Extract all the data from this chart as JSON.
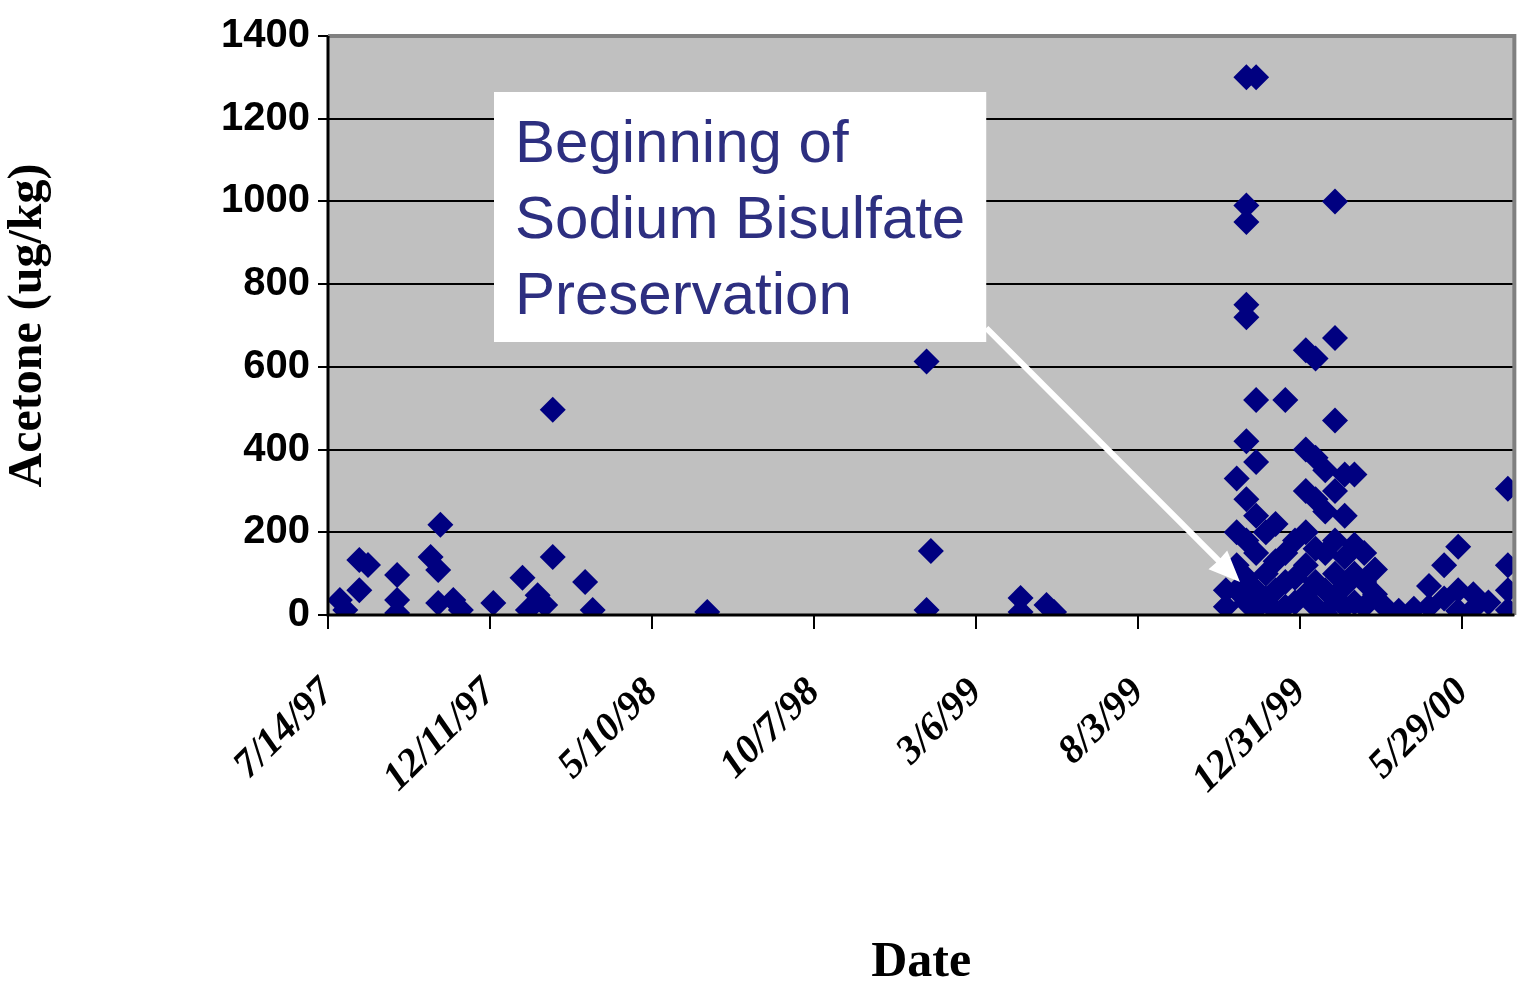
{
  "chart_data": {
    "type": "scatter",
    "xlabel": "Date",
    "ylabel": "Acetone (ug/kg)",
    "xlim": [
      "1997-07-14",
      "2000-07-16"
    ],
    "xticks": [
      {
        "value": "1997-07-14",
        "label": "7/14/97"
      },
      {
        "value": "1997-12-11",
        "label": "12/11/97"
      },
      {
        "value": "1998-05-10",
        "label": "5/10/98"
      },
      {
        "value": "1998-10-07",
        "label": "10/7/98"
      },
      {
        "value": "1999-03-06",
        "label": "3/6/99"
      },
      {
        "value": "1999-08-03",
        "label": "8/3/99"
      },
      {
        "value": "1999-12-31",
        "label": "12/31/99"
      },
      {
        "value": "2000-05-29",
        "label": "5/29/00"
      }
    ],
    "ylim": [
      0,
      1400
    ],
    "yticks": [
      0,
      200,
      400,
      600,
      800,
      1000,
      1200,
      1400
    ],
    "grid": "y",
    "legend": false,
    "marker": "diamond",
    "annotations": [
      "Beginning of Sodium Bisulfate Preservation"
    ],
    "series": [
      {
        "color": "#000080",
        "x": [
          "1997-07-25",
          "1997-07-30",
          "1997-08-12",
          "1997-08-20",
          "1997-08-12",
          "1997-09-16",
          "1997-09-16",
          "1997-09-16",
          "1997-10-17",
          "1997-10-26",
          "1997-10-24",
          "1997-10-24",
          "1997-11-07",
          "1997-11-14",
          "1997-12-14",
          "1998-01-10",
          "1998-01-15",
          "1998-01-24",
          "1998-01-31",
          "1998-02-07",
          "1998-02-07",
          "1998-03-09",
          "1998-03-16",
          "1998-06-30",
          "1999-01-19",
          "1999-01-23",
          "1999-01-19",
          "1999-04-16",
          "1999-04-16",
          "1999-05-10",
          "1999-05-17",
          "1999-10-23",
          "1999-10-23",
          "1999-11-02",
          "1999-11-02",
          "1999-11-02",
          "1999-11-02",
          "1999-11-11",
          "1999-11-11",
          "1999-11-11",
          "1999-11-11",
          "1999-11-11",
          "1999-11-11",
          "1999-11-11",
          "1999-11-11",
          "1999-11-11",
          "1999-11-11",
          "1999-11-20",
          "1999-11-20",
          "1999-11-20",
          "1999-11-20",
          "1999-11-20",
          "1999-11-20",
          "1999-11-20",
          "1999-11-29",
          "1999-11-29",
          "1999-11-29",
          "1999-12-08",
          "1999-12-08",
          "1999-12-08",
          "1999-12-08",
          "1999-12-17",
          "1999-12-17",
          "1999-12-17",
          "1999-12-17",
          "1999-12-26",
          "1999-12-26",
          "1999-12-26",
          "2000-01-05",
          "2000-01-05",
          "2000-01-05",
          "2000-01-05",
          "2000-01-05",
          "2000-01-05",
          "2000-01-14",
          "2000-01-14",
          "2000-01-14",
          "2000-01-14",
          "2000-01-14",
          "2000-01-14",
          "2000-01-23",
          "2000-01-23",
          "2000-01-23",
          "2000-01-23",
          "2000-01-23",
          "2000-02-01",
          "2000-02-01",
          "2000-02-01",
          "2000-02-01",
          "2000-02-01",
          "2000-02-01",
          "2000-02-01",
          "2000-02-10",
          "2000-02-10",
          "2000-02-10",
          "2000-02-10",
          "2000-02-10",
          "2000-02-19",
          "2000-02-19",
          "2000-02-19",
          "2000-02-19",
          "2000-02-28",
          "2000-02-28",
          "2000-02-28",
          "2000-03-09",
          "2000-03-09",
          "2000-03-18",
          "2000-03-31",
          "2000-04-14",
          "2000-04-28",
          "2000-04-28",
          "2000-05-12",
          "2000-05-12",
          "2000-05-25",
          "2000-05-25",
          "2000-05-25",
          "2000-06-08",
          "2000-06-08",
          "2000-06-22",
          "2000-07-10",
          "2000-07-10",
          "2000-07-10",
          "2000-07-10"
        ],
        "values": [
          36,
          12,
          133,
          121,
          60,
          97,
          36,
          5,
          140,
          218,
          109,
          29,
          36,
          12,
          29,
          90,
          12,
          48,
          24,
          496,
          140,
          80,
          12,
          7,
          613,
          155,
          12,
          41,
          7,
          24,
          7,
          60,
          20,
          330,
          200,
          120,
          60,
          1300,
          990,
          950,
          750,
          720,
          420,
          280,
          180,
          90,
          30,
          1300,
          520,
          370,
          240,
          150,
          60,
          15,
          200,
          100,
          40,
          220,
          130,
          60,
          10,
          520,
          150,
          80,
          20,
          180,
          90,
          30,
          640,
          400,
          300,
          200,
          120,
          50,
          620,
          380,
          280,
          160,
          80,
          20,
          350,
          250,
          150,
          60,
          5,
          1000,
          670,
          470,
          300,
          180,
          100,
          40,
          340,
          240,
          140,
          70,
          20,
          340,
          170,
          100,
          30,
          150,
          80,
          20,
          110,
          50,
          20,
          10,
          15,
          70,
          20,
          120,
          40,
          165,
          60,
          10,
          50,
          15,
          30,
          305,
          120,
          60,
          12
        ]
      }
    ]
  }
}
